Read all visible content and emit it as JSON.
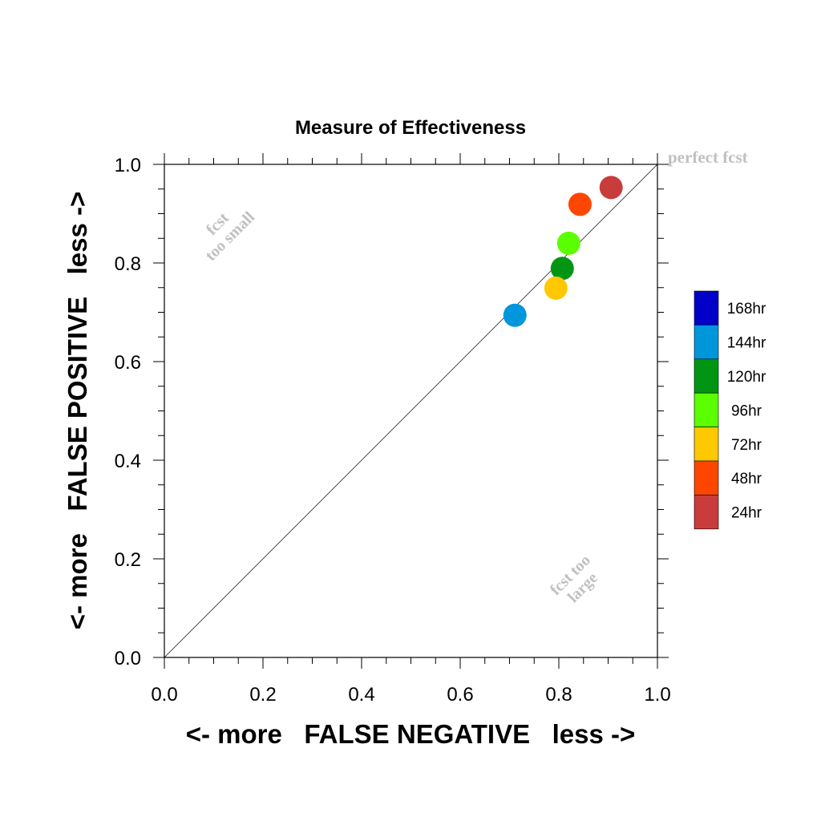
{
  "chart_data": {
    "type": "scatter",
    "title": "Measure of Effectiveness",
    "xlabel": "<- more   FALSE NEGATIVE   less ->",
    "ylabel": "<- more   FALSE POSITIVE   less ->",
    "xlim": [
      0.0,
      1.0
    ],
    "ylim": [
      0.0,
      1.0
    ],
    "x_ticks": [
      "0.0",
      "0.2",
      "0.4",
      "0.6",
      "0.8",
      "1.0"
    ],
    "y_ticks": [
      "0.0",
      "0.2",
      "0.4",
      "0.6",
      "0.8",
      "1.0"
    ],
    "grid": false,
    "reference_line": "diagonal y = x",
    "annotations": {
      "perfect": "perfect fcst",
      "too_small_1": "fcst",
      "too_small_2": "too small",
      "too_large_1": "fcst too",
      "too_large_2": "large"
    },
    "legend_placement": "right",
    "legend": [
      {
        "label": "168hr",
        "color": "#0000c8"
      },
      {
        "label": "144hr",
        "color": "#0096dc"
      },
      {
        "label": "120hr",
        "color": "#009614"
      },
      {
        "label": "96hr",
        "color": "#5aff00"
      },
      {
        "label": "72hr",
        "color": "#ffc800"
      },
      {
        "label": "48hr",
        "color": "#ff4600"
      },
      {
        "label": "24hr",
        "color": "#c83c3c"
      }
    ],
    "series": [
      {
        "name": "144hr",
        "x": 0.711,
        "y": 0.694,
        "color": "#0096dc"
      },
      {
        "name": "120hr",
        "x": 0.807,
        "y": 0.789,
        "color": "#009614"
      },
      {
        "name": "96hr",
        "x": 0.82,
        "y": 0.84,
        "color": "#5aff00"
      },
      {
        "name": "72hr",
        "x": 0.794,
        "y": 0.749,
        "color": "#ffc800"
      },
      {
        "name": "48hr",
        "x": 0.843,
        "y": 0.919,
        "color": "#ff4600"
      },
      {
        "name": "24hr",
        "x": 0.906,
        "y": 0.953,
        "color": "#c83c3c"
      }
    ]
  }
}
